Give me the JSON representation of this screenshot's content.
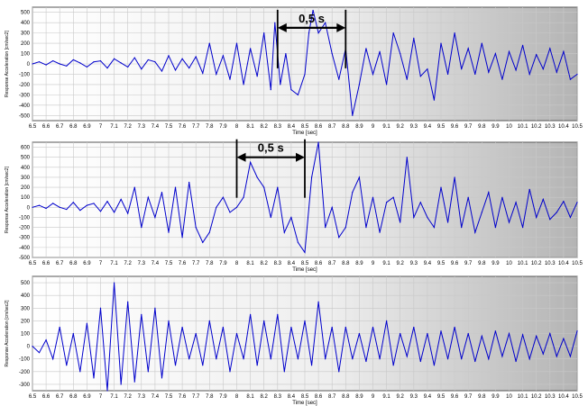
{
  "chart_data": [
    {
      "type": "line",
      "title": "",
      "xlabel": "Time [sec]",
      "ylabel": "Response Acceleration [cm/sec2]",
      "xlim": [
        6.5,
        10.5
      ],
      "ylim": [
        -550,
        550
      ],
      "grid": true,
      "x_ticks": [
        "6.5",
        "6.6",
        "6.7",
        "6.8",
        "6.9",
        "7",
        "7.1",
        "7.2",
        "7.3",
        "7.4",
        "7.5",
        "7.6",
        "7.7",
        "7.8",
        "7.9",
        "8",
        "8.1",
        "8.2",
        "8.3",
        "8.4",
        "8.5",
        "8.6",
        "8.7",
        "8.8",
        "8.9",
        "9",
        "9.1",
        "9.2",
        "9.3",
        "9.4",
        "9.5",
        "9.6",
        "9.7",
        "9.8",
        "9.9",
        "10",
        "10.1",
        "10.2",
        "10.3",
        "10.4",
        "10.5"
      ],
      "y_ticks": [
        "500",
        "400",
        "300",
        "200",
        "100",
        "0",
        "-100",
        "-200",
        "-300",
        "-400",
        "-500"
      ],
      "series": [
        {
          "color": "#0000cc",
          "x": [
            6.5,
            6.55,
            6.6,
            6.65,
            6.7,
            6.75,
            6.8,
            6.85,
            6.9,
            6.95,
            7.0,
            7.05,
            7.1,
            7.15,
            7.2,
            7.25,
            7.3,
            7.35,
            7.4,
            7.45,
            7.5,
            7.55,
            7.6,
            7.65,
            7.7,
            7.75,
            7.8,
            7.85,
            7.9,
            7.95,
            8.0,
            8.05,
            8.1,
            8.15,
            8.2,
            8.25,
            8.28,
            8.32,
            8.36,
            8.4,
            8.45,
            8.5,
            8.53,
            8.56,
            8.6,
            8.65,
            8.7,
            8.75,
            8.8,
            8.85,
            8.9,
            8.95,
            9.0,
            9.05,
            9.1,
            9.15,
            9.2,
            9.25,
            9.3,
            9.35,
            9.4,
            9.45,
            9.5,
            9.55,
            9.6,
            9.65,
            9.7,
            9.75,
            9.8,
            9.85,
            9.9,
            9.95,
            10.0,
            10.05,
            10.1,
            10.15,
            10.2,
            10.25,
            10.3,
            10.35,
            10.4,
            10.45,
            10.5
          ],
          "y": [
            0,
            20,
            -10,
            30,
            0,
            -20,
            40,
            10,
            -30,
            20,
            30,
            -40,
            50,
            10,
            -30,
            60,
            -50,
            40,
            20,
            -70,
            80,
            -60,
            50,
            -40,
            70,
            -90,
            200,
            -100,
            80,
            -150,
            200,
            -200,
            150,
            -120,
            300,
            -250,
            400,
            -200,
            100,
            -250,
            -300,
            -100,
            300,
            520,
            300,
            400,
            100,
            -150,
            150,
            -500,
            -200,
            150,
            -100,
            120,
            -200,
            300,
            100,
            -150,
            250,
            -120,
            -50,
            -350,
            200,
            -100,
            300,
            -50,
            150,
            -100,
            200,
            -80,
            100,
            -150,
            120,
            -60,
            180,
            -100,
            90,
            -50,
            150,
            -80,
            120,
            -150,
            -100
          ]
        }
      ],
      "annotations": [
        {
          "text": "0,5 s",
          "x_start": 8.3,
          "x_end": 8.8,
          "y": 350
        }
      ]
    },
    {
      "type": "line",
      "title": "",
      "xlabel": "Time [sec]",
      "ylabel": "Response Acceleration [cm/sec2]",
      "xlim": [
        6.5,
        10.5
      ],
      "ylim": [
        -500,
        650
      ],
      "grid": true,
      "x_ticks": [
        "6.5",
        "6.6",
        "6.7",
        "6.8",
        "6.9",
        "7",
        "7.1",
        "7.2",
        "7.3",
        "7.4",
        "7.5",
        "7.6",
        "7.7",
        "7.8",
        "7.9",
        "8",
        "8.1",
        "8.2",
        "8.3",
        "8.4",
        "8.5",
        "8.6",
        "8.7",
        "8.8",
        "8.9",
        "9",
        "9.1",
        "9.2",
        "9.3",
        "9.4",
        "9.5",
        "9.6",
        "9.7",
        "9.8",
        "9.9",
        "10",
        "10.1",
        "10.2",
        "10.3",
        "10.4",
        "10.5"
      ],
      "y_ticks": [
        "600",
        "500",
        "400",
        "300",
        "200",
        "100",
        "0",
        "-100",
        "-200",
        "-300",
        "-400",
        "-500"
      ],
      "series": [
        {
          "color": "#0000cc",
          "x": [
            6.5,
            6.55,
            6.6,
            6.65,
            6.7,
            6.75,
            6.8,
            6.85,
            6.9,
            6.95,
            7.0,
            7.05,
            7.1,
            7.15,
            7.2,
            7.25,
            7.3,
            7.35,
            7.4,
            7.45,
            7.5,
            7.55,
            7.6,
            7.65,
            7.7,
            7.75,
            7.8,
            7.85,
            7.9,
            7.95,
            8.0,
            8.05,
            8.1,
            8.15,
            8.2,
            8.25,
            8.3,
            8.35,
            8.4,
            8.45,
            8.5,
            8.55,
            8.6,
            8.65,
            8.7,
            8.75,
            8.8,
            8.85,
            8.9,
            8.95,
            9.0,
            9.05,
            9.1,
            9.15,
            9.2,
            9.25,
            9.3,
            9.35,
            9.4,
            9.45,
            9.5,
            9.55,
            9.6,
            9.65,
            9.7,
            9.75,
            9.8,
            9.85,
            9.9,
            9.95,
            10.0,
            10.05,
            10.1,
            10.15,
            10.2,
            10.25,
            10.3,
            10.35,
            10.4,
            10.45,
            10.5
          ],
          "y": [
            0,
            20,
            -10,
            40,
            0,
            -20,
            50,
            -30,
            20,
            40,
            -40,
            60,
            -50,
            80,
            -60,
            200,
            -200,
            100,
            -100,
            150,
            -250,
            200,
            -300,
            250,
            -200,
            -350,
            -250,
            0,
            100,
            -50,
            0,
            100,
            450,
            300,
            200,
            -100,
            200,
            -250,
            -100,
            -350,
            -450,
            300,
            650,
            -200,
            0,
            -300,
            -200,
            150,
            300,
            -200,
            100,
            -250,
            50,
            100,
            -150,
            500,
            -100,
            50,
            -100,
            -200,
            200,
            -150,
            300,
            -200,
            100,
            -250,
            -50,
            150,
            -200,
            100,
            -150,
            50,
            -200,
            180,
            -100,
            80,
            -120,
            -50,
            60,
            -100,
            50
          ]
        }
      ],
      "annotations": [
        {
          "text": "0,5 s",
          "x_start": 8.0,
          "x_end": 8.5,
          "y": 500
        }
      ]
    },
    {
      "type": "line",
      "title": "",
      "xlabel": "Time [sec]",
      "ylabel": "Response Acceleration [cm/sec2]",
      "xlim": [
        6.5,
        10.5
      ],
      "ylim": [
        -350,
        550
      ],
      "grid": true,
      "x_ticks": [
        "6.5",
        "6.6",
        "6.7",
        "6.8",
        "6.9",
        "7",
        "7.1",
        "7.2",
        "7.3",
        "7.4",
        "7.5",
        "7.6",
        "7.7",
        "7.8",
        "7.9",
        "8",
        "8.1",
        "8.2",
        "8.3",
        "8.4",
        "8.5",
        "8.6",
        "8.7",
        "8.8",
        "8.9",
        "9",
        "9.1",
        "9.2",
        "9.3",
        "9.4",
        "9.5",
        "9.6",
        "9.7",
        "9.8",
        "9.9",
        "10",
        "10.1",
        "10.2",
        "10.3",
        "10.4",
        "10.5"
      ],
      "y_ticks": [
        "500",
        "400",
        "300",
        "200",
        "100",
        "0",
        "-100",
        "-200",
        "-300"
      ],
      "series": [
        {
          "color": "#0000cc",
          "x": [
            6.5,
            6.55,
            6.6,
            6.65,
            6.7,
            6.75,
            6.8,
            6.85,
            6.9,
            6.95,
            7.0,
            7.05,
            7.1,
            7.15,
            7.2,
            7.25,
            7.3,
            7.35,
            7.4,
            7.45,
            7.5,
            7.55,
            7.6,
            7.65,
            7.7,
            7.75,
            7.8,
            7.85,
            7.9,
            7.95,
            8.0,
            8.05,
            8.1,
            8.15,
            8.2,
            8.25,
            8.3,
            8.35,
            8.4,
            8.45,
            8.5,
            8.55,
            8.6,
            8.65,
            8.7,
            8.75,
            8.8,
            8.85,
            8.9,
            8.95,
            9.0,
            9.05,
            9.1,
            9.15,
            9.2,
            9.25,
            9.3,
            9.35,
            9.4,
            9.45,
            9.5,
            9.55,
            9.6,
            9.65,
            9.7,
            9.75,
            9.8,
            9.85,
            9.9,
            9.95,
            10.0,
            10.05,
            10.1,
            10.15,
            10.2,
            10.25,
            10.3,
            10.35,
            10.4,
            10.45,
            10.5
          ],
          "y": [
            0,
            -50,
            50,
            -100,
            150,
            -150,
            100,
            -200,
            180,
            -250,
            300,
            -350,
            500,
            -300,
            350,
            -280,
            250,
            -200,
            300,
            -250,
            200,
            -150,
            150,
            -100,
            100,
            -150,
            200,
            -100,
            150,
            -200,
            100,
            -100,
            250,
            -150,
            200,
            -100,
            250,
            -200,
            150,
            -100,
            200,
            -150,
            350,
            -100,
            150,
            -200,
            150,
            -100,
            100,
            -120,
            150,
            -100,
            200,
            -150,
            100,
            -80,
            150,
            -120,
            100,
            -150,
            120,
            -100,
            150,
            -100,
            100,
            -120,
            80,
            -100,
            120,
            -80,
            100,
            -120,
            90,
            -100,
            80,
            -60,
            100,
            -80,
            60,
            -80,
            120
          ]
        }
      ],
      "annotations": []
    }
  ]
}
